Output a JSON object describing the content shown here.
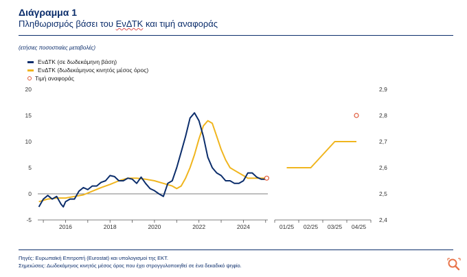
{
  "header": {
    "title": "Διάγραμμα 1",
    "subtitle_pre": "Πληθωρισμός βάσει του ",
    "subtitle_term": "ΕνΔΤΚ",
    "subtitle_post": " και τιμή αναφοράς"
  },
  "units": "(ετήσιες ποσοστιαίες μεταβολές)",
  "legend": {
    "items": [
      {
        "label": "ΕνΔΤΚ (σε δωδεκάμηνη βάση)",
        "color": "#0b2d6b"
      },
      {
        "label": "ΕνΔΤΚ (δωδεκάμηνος κινητός μέσος όρος)",
        "color": "#f0b51e"
      },
      {
        "label": "Τιμή αναφοράς",
        "color": "#e05a3a"
      }
    ]
  },
  "chart_data": [
    {
      "type": "line",
      "title": "Πληθωρισμός βάσει του ΕνΔΤΚ",
      "x_ticks": [
        "2016",
        "2018",
        "2020",
        "2022",
        "2024"
      ],
      "y_ticks": [
        "20",
        "15",
        "10",
        "5",
        "0",
        "-5"
      ],
      "ylim": [
        -5,
        20
      ],
      "xlim": [
        2014.75,
        2025.1
      ],
      "series": [
        {
          "name": "ΕνΔΤΚ (σε δωδεκάμηνη βάση)",
          "color": "#0b2d6b",
          "x": [
            2014.8,
            2015.0,
            2015.2,
            2015.4,
            2015.6,
            2015.8,
            2015.9,
            2016.0,
            2016.2,
            2016.4,
            2016.6,
            2016.8,
            2017.0,
            2017.2,
            2017.4,
            2017.6,
            2017.8,
            2018.0,
            2018.2,
            2018.4,
            2018.6,
            2018.8,
            2019.0,
            2019.2,
            2019.4,
            2019.6,
            2019.8,
            2020.0,
            2020.2,
            2020.4,
            2020.6,
            2020.8,
            2021.0,
            2021.2,
            2021.4,
            2021.6,
            2021.8,
            2022.0,
            2022.2,
            2022.4,
            2022.6,
            2022.8,
            2023.0,
            2023.2,
            2023.4,
            2023.6,
            2023.8,
            2024.0,
            2024.2,
            2024.4,
            2024.6,
            2024.8,
            2025.0
          ],
          "y": [
            -2.5,
            -1.0,
            -0.3,
            -1.0,
            -0.5,
            -2.0,
            -2.5,
            -1.5,
            -1.0,
            -1.0,
            0.5,
            1.2,
            0.8,
            1.5,
            1.5,
            2.2,
            2.5,
            3.5,
            3.3,
            2.5,
            2.5,
            3.0,
            2.8,
            2.0,
            3.2,
            2.0,
            1.0,
            0.6,
            0.0,
            -0.5,
            2.0,
            2.5,
            5.0,
            8.0,
            11.0,
            14.5,
            15.5,
            14.0,
            11.0,
            7.0,
            5.0,
            4.0,
            3.5,
            2.5,
            2.5,
            2.0,
            2.0,
            2.5,
            4.0,
            4.0,
            3.2,
            2.8,
            2.8
          ]
        },
        {
          "name": "ΕνΔΤΚ (δωδεκάμηνος κινητός μέσος όρος)",
          "color": "#f0b51e",
          "x": [
            2014.8,
            2015.2,
            2015.6,
            2016.0,
            2016.4,
            2016.8,
            2017.2,
            2017.6,
            2018.0,
            2018.4,
            2018.8,
            2019.2,
            2019.6,
            2020.0,
            2020.4,
            2020.8,
            2021.0,
            2021.2,
            2021.4,
            2021.6,
            2021.8,
            2022.0,
            2022.2,
            2022.4,
            2022.6,
            2022.8,
            2023.0,
            2023.2,
            2023.4,
            2023.6,
            2023.8,
            2024.0,
            2024.2,
            2024.4,
            2024.6,
            2024.8,
            2025.0
          ],
          "y": [
            -1.5,
            -1.0,
            -0.8,
            -0.8,
            -0.5,
            -0.2,
            0.5,
            1.2,
            1.8,
            2.5,
            3.0,
            3.0,
            2.8,
            2.5,
            2.0,
            1.5,
            1.0,
            1.5,
            3.0,
            5.0,
            7.5,
            10.5,
            13.0,
            14.0,
            13.5,
            11.0,
            8.5,
            6.5,
            5.0,
            4.5,
            4.0,
            3.5,
            3.0,
            3.0,
            3.0,
            3.0,
            3.0
          ]
        }
      ],
      "reference_point": {
        "x": 2025.05,
        "y": 3.0,
        "label": "Τιμή αναφοράς"
      }
    },
    {
      "type": "line",
      "title": "Τιμή αναφοράς",
      "x_ticks": [
        "01/25",
        "02/25",
        "03/25",
        "04/25"
      ],
      "y_ticks": [
        "2,9",
        "2,8",
        "2,7",
        "2,6",
        "2,5",
        "2,4"
      ],
      "ylim": [
        2.4,
        2.9
      ],
      "series": [
        {
          "name": "ΕνΔΤΚ (δωδεκάμηνος κινητός μέσος όρος)",
          "color": "#f0b51e",
          "x": [
            0.5,
            1.0,
            1.5,
            2.0,
            2.5,
            3.0,
            3.4
          ],
          "y": [
            2.6,
            2.6,
            2.6,
            2.65,
            2.7,
            2.7,
            2.7
          ]
        }
      ],
      "reference_point": {
        "x": 3.4,
        "y": 2.8,
        "label": "Τιμή αναφοράς"
      }
    }
  ],
  "notes": {
    "sources": "Πηγές: Ευρωπαϊκή Επιτροπή (Eurostat) και υπολογισμοί της ΕΚΤ.",
    "remarks": "Σημειώσεις: Δωδεκάμηνος κινητός μέσος όρος που έχει στρογγυλοποιηθεί σε ένα δεκαδικό ψηφίο."
  },
  "zoom_icon": "zoom-icon"
}
